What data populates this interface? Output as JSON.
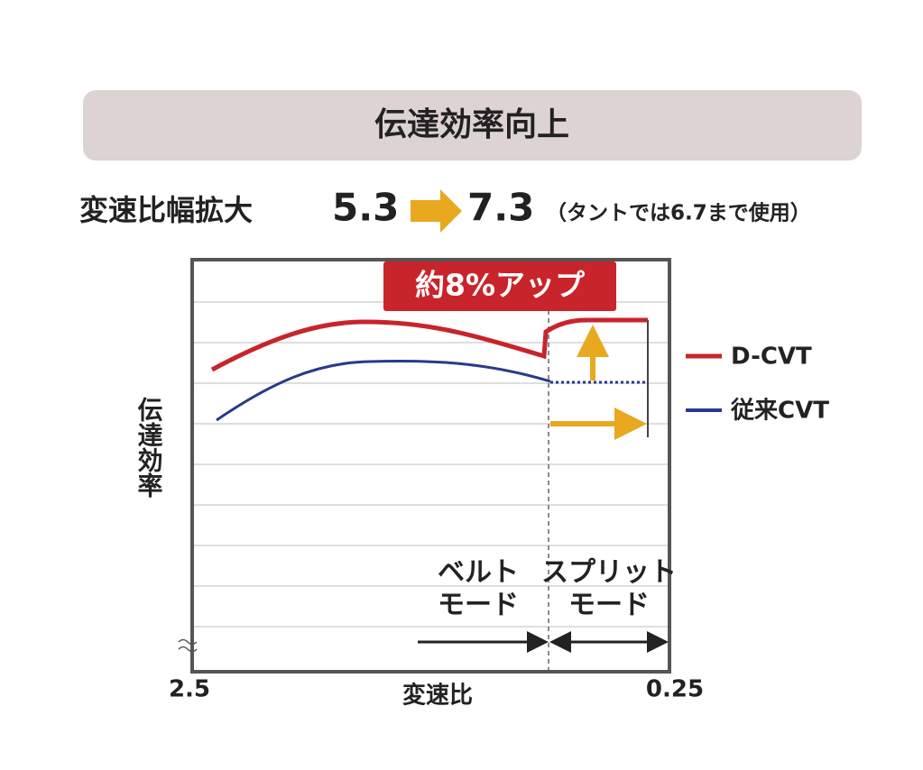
{
  "header": {
    "title": "伝達効率向上"
  },
  "range": {
    "label": "変速比幅拡大",
    "from": "5.3",
    "to": "7.3",
    "note": "（タントでは6.7まで使用）"
  },
  "chart": {
    "badge": "約8%アップ",
    "y_label": "伝達効率",
    "x_label": "変速比",
    "x_left": "2.5",
    "x_right": "0.25",
    "legend": [
      "D-CVT",
      "従来CVT"
    ],
    "modes": [
      {
        "line1": "ベルト",
        "line2": "モード"
      },
      {
        "line1": "スプリット",
        "line2": "モード"
      }
    ]
  }
}
